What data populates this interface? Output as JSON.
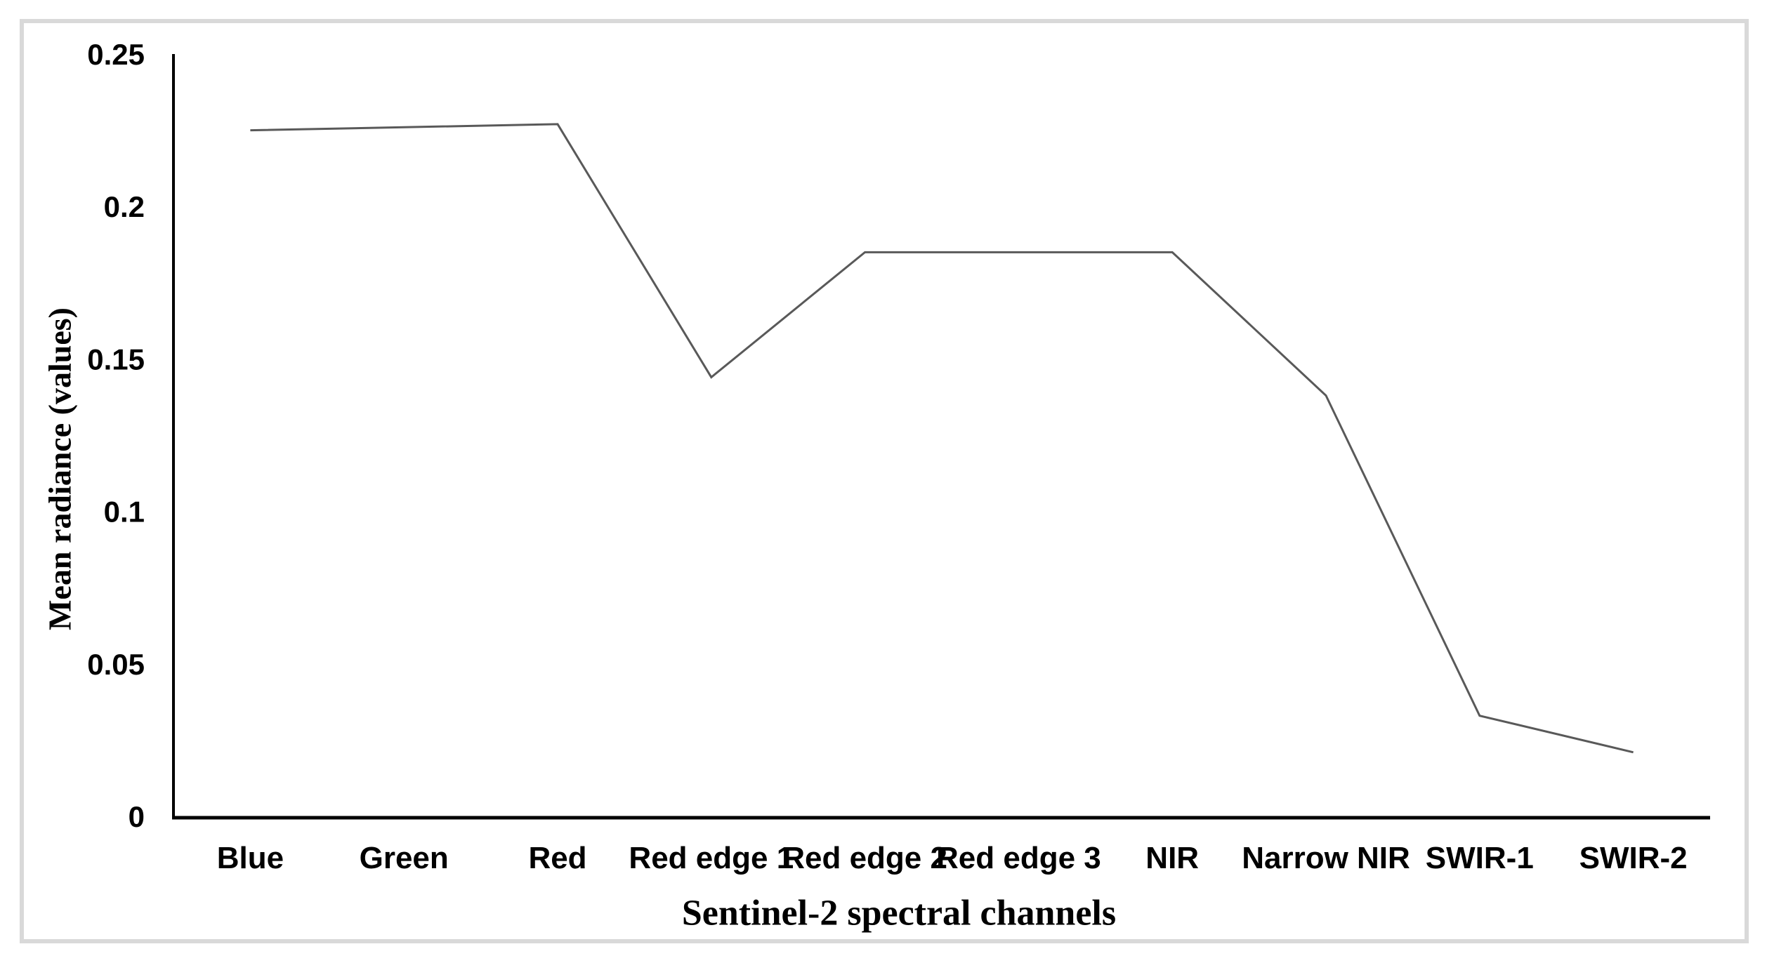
{
  "chart_data": {
    "type": "line",
    "title": "",
    "xlabel": "Sentinel-2 spectral channels",
    "ylabel": "Mean radiance (values)",
    "categories": [
      "Blue",
      "Green",
      "Red",
      "Red edge 1",
      "Red edge 2",
      "Red edge 3",
      "NIR",
      "Narrow NIR",
      "SWIR-1",
      "SWIR-2"
    ],
    "values": [
      0.225,
      0.226,
      0.227,
      0.144,
      0.185,
      0.185,
      0.185,
      0.138,
      0.033,
      0.021
    ],
    "ylim": [
      0,
      0.25
    ],
    "yticks": [
      0,
      0.05,
      0.1,
      0.15,
      0.2,
      0.25
    ],
    "ytick_labels": [
      "0",
      "0.05",
      "0.1",
      "0.15",
      "0.2",
      "0.25"
    ],
    "grid": false,
    "legend_position": "none",
    "line_color": "#595959",
    "axis_color": "#000000",
    "text_color": "#000000",
    "frame_color": "#d9d9d9"
  }
}
